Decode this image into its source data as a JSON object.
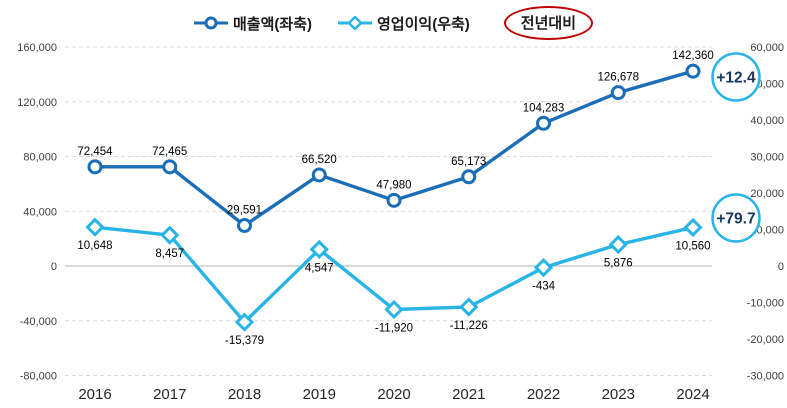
{
  "legend": {
    "series1_label": "매출액(좌축)",
    "series2_label": "영업이익(우축)",
    "yoy_label": "전년대비"
  },
  "colors": {
    "series1": "#1a6eb8",
    "series2": "#29b4e8",
    "grid": "#d9d9d9",
    "zero_line": "#b3b3b3",
    "axis_text": "#404040",
    "x_axis_text": "#262626",
    "data_label_text": "#000000",
    "badge_border": "#29b4e8",
    "badge_text": "#17365d",
    "yoy_circle": "#c00000"
  },
  "badges": [
    {
      "text": "+12.4"
    },
    {
      "text": "+79.7"
    }
  ],
  "chart_data": {
    "type": "line",
    "title": "",
    "categories": [
      "2016",
      "2017",
      "2018",
      "2019",
      "2020",
      "2021",
      "2022",
      "2023",
      "2024"
    ],
    "series": [
      {
        "name": "매출액(좌축)",
        "axis": "left",
        "color": "#1a6eb8",
        "marker": "circle",
        "label_position": "above",
        "values": [
          72454,
          72465,
          29591,
          66520,
          47980,
          65173,
          104283,
          126678,
          142360
        ]
      },
      {
        "name": "영업이익(우축)",
        "axis": "right",
        "color": "#29b4e8",
        "marker": "diamond",
        "label_position": "below",
        "values": [
          10648,
          8457,
          -15379,
          4547,
          -11920,
          -11226,
          -434,
          5876,
          10560
        ]
      }
    ],
    "left_axis": {
      "min": -80000,
      "max": 160000,
      "step": 40000
    },
    "right_axis": {
      "min": -30000,
      "max": 60000,
      "step": 10000
    },
    "grid": "horizontal-dashed",
    "legend_position": "top",
    "annotations": [
      {
        "text": "+12.4",
        "attached_to": "매출액(좌축) 2024"
      },
      {
        "text": "+79.7",
        "attached_to": "영업이익(우축) 2024"
      }
    ]
  }
}
